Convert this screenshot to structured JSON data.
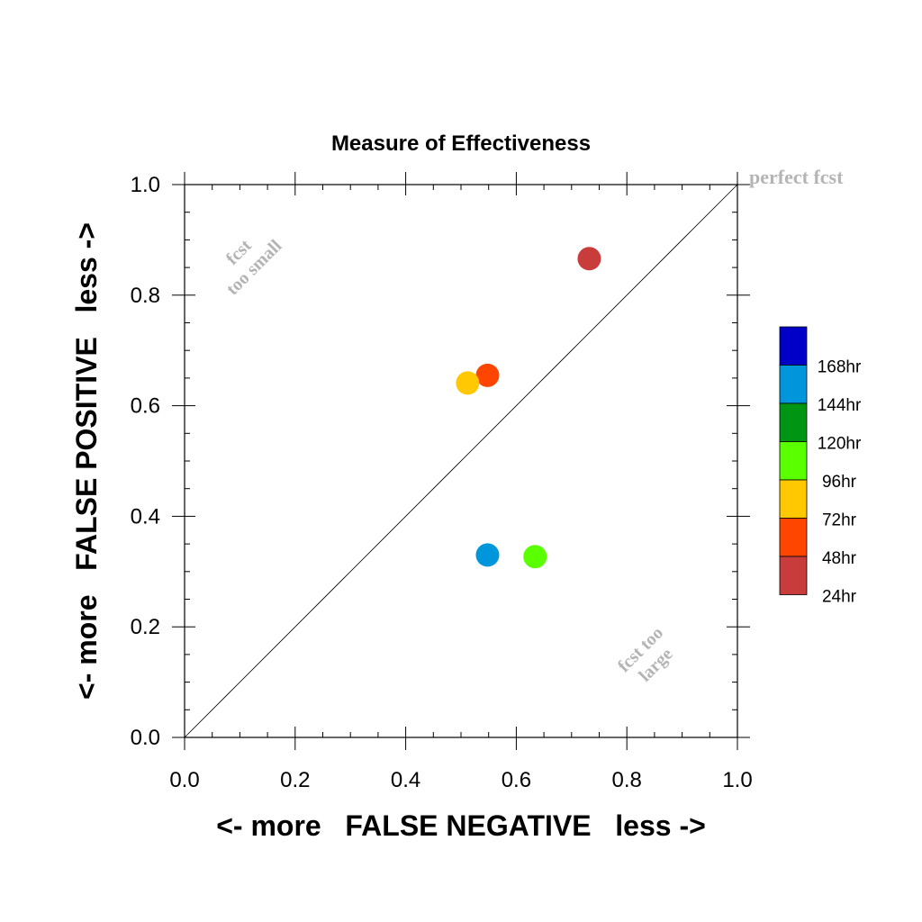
{
  "chart_data": {
    "type": "scatter",
    "title": "Measure of Effectiveness",
    "xlabel": "<- more   FALSE NEGATIVE   less ->",
    "ylabel": "<- more   FALSE POSITIVE   less ->",
    "xlim": [
      0,
      1
    ],
    "ylim": [
      0,
      1
    ],
    "xticks": [
      "0.0",
      "0.2",
      "0.4",
      "0.6",
      "0.8",
      "1.0"
    ],
    "yticks": [
      "0.0",
      "0.2",
      "0.4",
      "0.6",
      "0.8",
      "1.0"
    ],
    "grid": false,
    "diagonal_line": true,
    "annotations": {
      "perfect": "perfect fcst",
      "too_small_1": "fcst",
      "too_small_2": "too small",
      "too_large_1": "fcst too",
      "too_large_2": "large"
    },
    "legend": {
      "placement": "right",
      "entries": [
        {
          "label": "168hr",
          "color": "#0000c8"
        },
        {
          "label": "144hr",
          "color": "#0096dc"
        },
        {
          "label": "120hr",
          "color": "#009614"
        },
        {
          "label": "96hr",
          "color": "#5aff00"
        },
        {
          "label": "72hr",
          "color": "#ffc800"
        },
        {
          "label": "48hr",
          "color": "#ff4600"
        },
        {
          "label": "24hr",
          "color": "#c83c3c"
        }
      ]
    },
    "points": [
      {
        "series": "24hr",
        "x": 0.732,
        "y": 0.866,
        "color": "#c83c3c"
      },
      {
        "series": "48hr",
        "x": 0.548,
        "y": 0.655,
        "color": "#ff4600"
      },
      {
        "series": "72hr",
        "x": 0.512,
        "y": 0.641,
        "color": "#ffc800"
      },
      {
        "series": "96hr",
        "x": 0.634,
        "y": 0.327,
        "color": "#5aff00"
      },
      {
        "series": "144hr",
        "x": 0.548,
        "y": 0.33,
        "color": "#0096dc"
      }
    ],
    "colors": {
      "axis": "#000000",
      "annotation": "#b4b4b4"
    }
  }
}
